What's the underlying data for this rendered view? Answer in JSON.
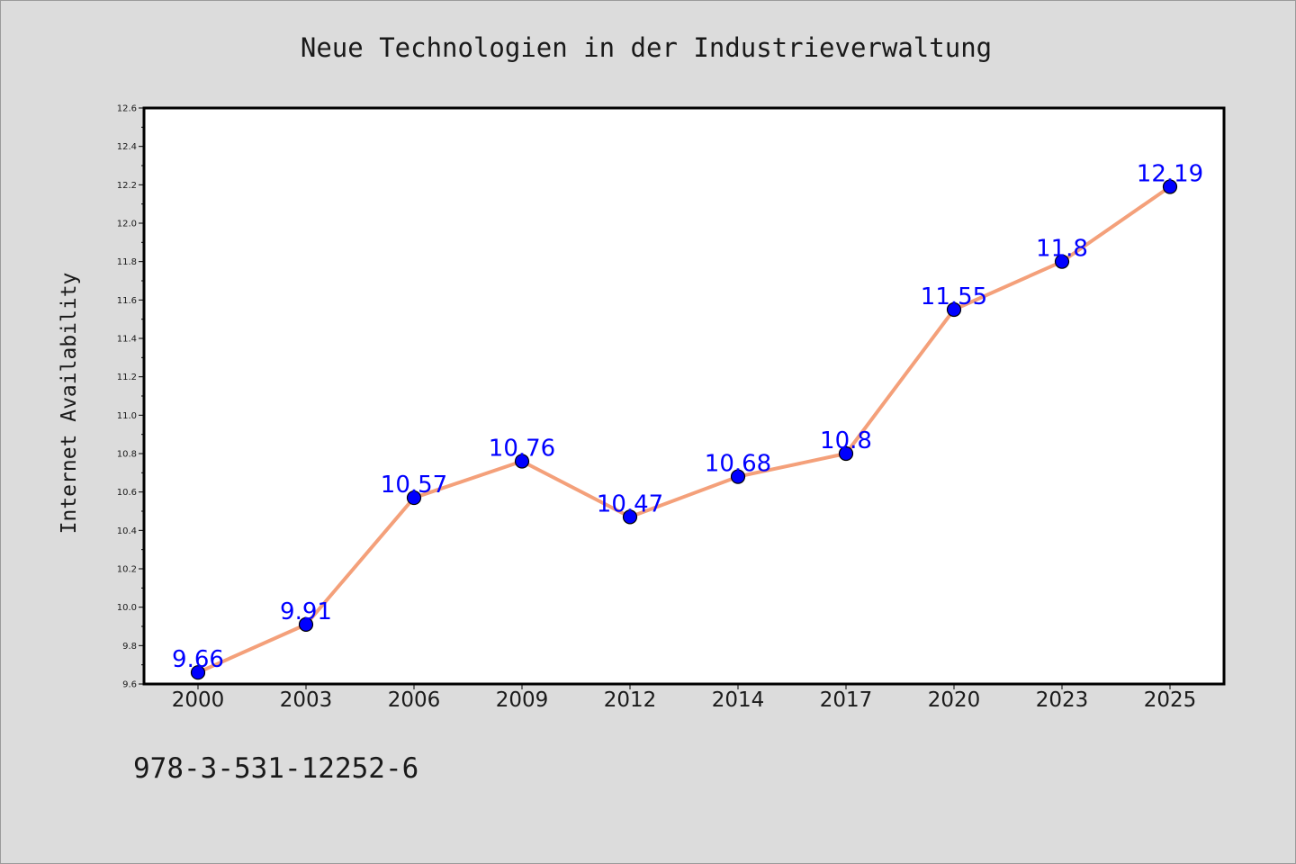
{
  "chart_data": {
    "type": "line",
    "title": "Neue Technologien in der Industrieverwaltung",
    "ylabel": "Internet Availability",
    "xlabel": "",
    "categories": [
      "2000",
      "2003",
      "2006",
      "2009",
      "2012",
      "2014",
      "2017",
      "2020",
      "2023",
      "2025"
    ],
    "series": [
      {
        "values": [
          9.66,
          9.91,
          10.57,
          10.76,
          10.47,
          10.68,
          10.8,
          11.55,
          11.8,
          12.19
        ]
      }
    ],
    "data_labels": [
      "9.66",
      "9.91",
      "10.57",
      "10.76",
      "10.47",
      "10.68",
      "10.8",
      "11.55",
      "11.8",
      "12.19"
    ],
    "ylim": [
      9.6,
      12.6
    ],
    "yticks": [
      9.6,
      9.8,
      10.0,
      10.2,
      10.4,
      10.6,
      10.8,
      11.0,
      11.2,
      11.4,
      11.6,
      11.8,
      12.0,
      12.2,
      12.4,
      12.6
    ],
    "ytick_labels": [
      "9.6",
      "9.8",
      "10.0",
      "10.2",
      "10.4",
      "10.6",
      "10.8",
      "11.0",
      "11.2",
      "11.4",
      "11.6",
      "11.8",
      "12.0",
      "12.2",
      "12.4",
      "12.6"
    ],
    "grid": false,
    "legend": "none",
    "colors": {
      "line": "#f4a07a",
      "marker": "#0000ff",
      "data_label": "#0000ff",
      "plot_background": "#ffffff",
      "figure_background": "#dcdcdc"
    }
  },
  "footer": {
    "isbn": "978-3-531-12252-6"
  }
}
